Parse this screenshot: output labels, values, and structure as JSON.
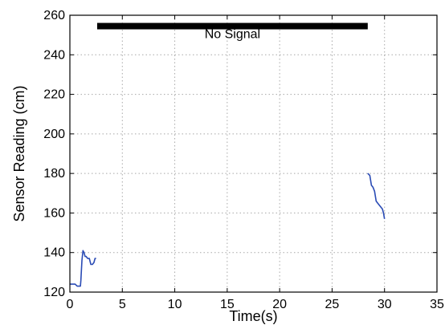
{
  "chart_data": {
    "type": "line",
    "xlabel": "Time(s)",
    "ylabel": "Sensor Reading (cm)",
    "xlim": [
      0,
      35
    ],
    "ylim": [
      120,
      260
    ],
    "x_ticks": [
      0,
      5,
      10,
      15,
      20,
      25,
      30,
      35
    ],
    "y_ticks": [
      120,
      140,
      160,
      180,
      200,
      220,
      240,
      260
    ],
    "grid": true,
    "series": [
      {
        "color": "#2a4bb5",
        "segments": [
          {
            "x": [
              0.0,
              0.5,
              0.7,
              1.0,
              1.05,
              1.15,
              1.25,
              1.35,
              1.45,
              1.55,
              1.7,
              1.85,
              2.0,
              2.15,
              2.3,
              2.4,
              2.5
            ],
            "y": [
              124,
              124,
              123,
              123,
              126,
              136,
              141,
              140,
              138,
              138,
              137,
              137,
              134,
              134,
              135,
              137,
              137
            ]
          },
          {
            "x": [
              28.4,
              28.6,
              28.75,
              28.9,
              29.05,
              29.2,
              29.35,
              29.5,
              29.65,
              29.8,
              29.9,
              30.0
            ],
            "y": [
              180,
              179,
              174,
              173,
              171,
              166,
              165,
              164,
              163,
              162,
              160,
              157
            ]
          }
        ]
      }
    ],
    "annotations": [
      {
        "text": "No Signal",
        "bar_x": [
          2.6,
          28.4
        ],
        "bar_y": 254.5,
        "bar_color": "#000000",
        "text_x": 15.5,
        "text_y": 248.5
      }
    ]
  }
}
